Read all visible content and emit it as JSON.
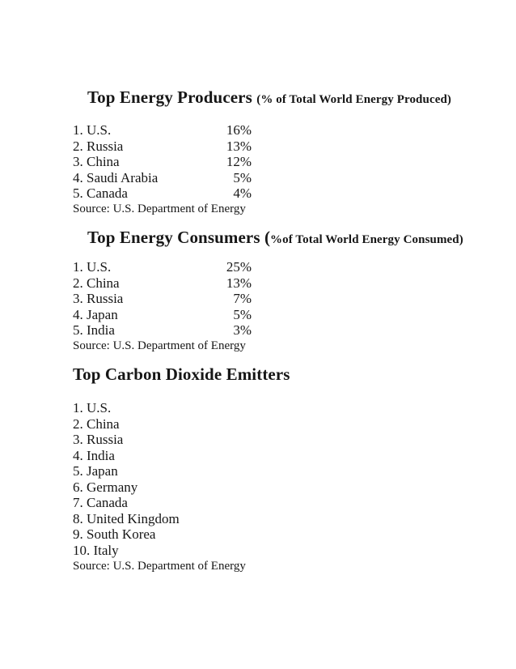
{
  "document": {
    "background_color": "#ffffff",
    "text_color": "#161616",
    "sections": [
      {
        "title_main": "Top Energy Producers",
        "title_paren": "(% of Total World Energy Produced)",
        "items": [
          {
            "label": "1. U.S.",
            "value": "16%"
          },
          {
            "label": "2. Russia",
            "value": "13%"
          },
          {
            "label": "3. China",
            "value": "12%"
          },
          {
            "label": "4. Saudi Arabia",
            "value": "5%"
          },
          {
            "label": "5. Canada",
            "value": "4%"
          }
        ],
        "source": "Source: U.S. Department of Energy"
      },
      {
        "title_main": "Top Energy Consumers (",
        "title_paren": "%of Total World Energy Consumed)",
        "items": [
          {
            "label": "1. U.S.",
            "value": "25%"
          },
          {
            "label": "2. China",
            "value": "13%"
          },
          {
            "label": "3. Russia",
            "value": "7%"
          },
          {
            "label": "4. Japan",
            "value": "5%"
          },
          {
            "label": "5. India",
            "value": "3%"
          }
        ],
        "source": "Source: U.S. Department of Energy"
      },
      {
        "title_main": "Top Carbon Dioxide Emitters",
        "title_paren": "",
        "items": [
          {
            "label": "1. U.S."
          },
          {
            "label": "2. China"
          },
          {
            "label": "3. Russia"
          },
          {
            "label": "4. India"
          },
          {
            "label": "5. Japan"
          },
          {
            "label": "6. Germany"
          },
          {
            "label": "7. Canada"
          },
          {
            "label": "8. United Kingdom"
          },
          {
            "label": "9. South Korea"
          },
          {
            "label": "10. Italy"
          }
        ],
        "source": "Source: U.S. Department of Energy"
      }
    ]
  }
}
